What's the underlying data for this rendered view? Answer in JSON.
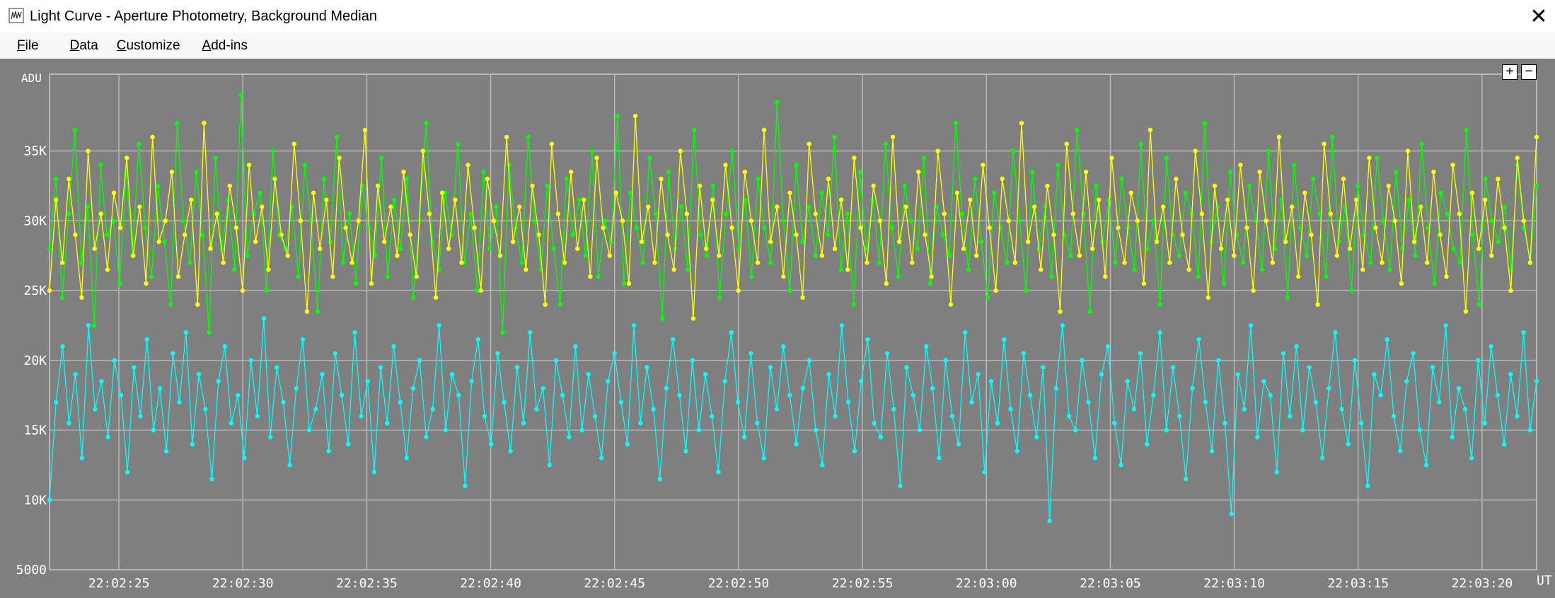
{
  "window": {
    "title": "Light Curve - Aperture Photometry, Background Median",
    "close_glyph": "✕"
  },
  "menu": [
    {
      "u": "F",
      "rest": "ile"
    },
    {
      "u": "D",
      "rest": "ata"
    },
    {
      "u": "C",
      "rest": "ustomize"
    },
    {
      "u": "A",
      "rest": "dd-ins"
    }
  ],
  "zoom": {
    "plus": "+",
    "minus": "−"
  },
  "colors": {
    "plot_bg": "#7f7f7f",
    "grid": "#b8b8b8",
    "axis_text": "#ffffff"
  },
  "chart_data": {
    "type": "line",
    "ylabel": "ADU",
    "xlabel": "UT",
    "ylim": [
      5000,
      40500
    ],
    "xlim_seconds_after_22_02_22_2": [
      0,
      60
    ],
    "y_ticks": [
      {
        "value": 5000,
        "label": "5000"
      },
      {
        "value": 10000,
        "label": "10K"
      },
      {
        "value": 15000,
        "label": "15K"
      },
      {
        "value": 20000,
        "label": "20K"
      },
      {
        "value": 25000,
        "label": "25K"
      },
      {
        "value": 30000,
        "label": "30K"
      },
      {
        "value": 35000,
        "label": "35K"
      }
    ],
    "x_ticks": [
      "22:02:25",
      "22:02:30",
      "22:02:35",
      "22:02:40",
      "22:02:45",
      "22:02:50",
      "22:02:55",
      "22:03:00",
      "22:03:05",
      "22:03:10",
      "22:03:15",
      "22:03:20"
    ],
    "grid": true,
    "markers": true,
    "series": [
      {
        "color": "#00ff00",
        "values": [
          28000,
          33000,
          24500,
          30500,
          36500,
          27000,
          31000,
          22500,
          34000,
          29000,
          30000,
          25500,
          33500,
          27500,
          35500,
          29500,
          26000,
          32500,
          28500,
          24000,
          37000,
          30000,
          27000,
          33500,
          29000,
          22000,
          34500,
          28000,
          31500,
          26500,
          39000,
          27500,
          30500,
          32000,
          25000,
          35000,
          29000,
          28000,
          31000,
          26000,
          34000,
          30000,
          23500,
          33000,
          28500,
          36000,
          27000,
          30500,
          25500,
          32500,
          29500,
          27500,
          34500,
          26000,
          31500,
          28000,
          33000,
          24500,
          30000,
          37000,
          28500,
          26500,
          32000,
          29000,
          35500,
          27000,
          30500,
          25000,
          33500,
          28000,
          31000,
          22000,
          34000,
          29500,
          27000,
          36000,
          30000,
          26500,
          32500,
          28000,
          24000,
          33000,
          29000,
          31500,
          27500,
          35000,
          26000,
          30000,
          28500,
          37500,
          25500,
          32000,
          29500,
          27000,
          34500,
          30500,
          23000,
          33500,
          28000,
          31000,
          26500,
          36500,
          29000,
          27500,
          32500,
          24500,
          30500,
          35000,
          28000,
          31500,
          26000,
          33000,
          29500,
          27000,
          38500,
          30000,
          25000,
          34000,
          28500,
          31000,
          27500,
          32000,
          29000,
          36000,
          26500,
          30500,
          24000,
          33500,
          28000,
          31500,
          27000,
          35500,
          29500,
          26000,
          32500,
          30000,
          28000,
          34500,
          25500,
          31000,
          29000,
          27500,
          37000,
          30500,
          26500,
          33000,
          28500,
          24500,
          32000,
          29500,
          27000,
          35000,
          30000,
          25000,
          33500,
          28000,
          31000,
          26000,
          34000,
          29000,
          27500,
          36500,
          30500,
          23500,
          32500,
          28500,
          31500,
          27000,
          33000,
          29500,
          26500,
          35500,
          28000,
          30000,
          24000,
          34500,
          29000,
          27500,
          32000,
          30500,
          26000,
          37000,
          28500,
          31000,
          25500,
          33500,
          29000,
          27000,
          32500,
          30000,
          26500,
          35000,
          28000,
          31500,
          24500,
          34000,
          29500,
          27500,
          33000,
          30500,
          26000,
          36000,
          28500,
          31000,
          25000,
          32500,
          29000,
          27000,
          34500,
          30000,
          26500,
          33500,
          28000,
          31500,
          27500,
          35500,
          29500,
          25500,
          32000,
          30500,
          28000,
          27000,
          36500,
          29000,
          24000,
          33000,
          30000,
          28500,
          31000,
          26500,
          34000,
          29500,
          27000,
          32500
        ]
      },
      {
        "color": "#ffff00",
        "values": [
          25000,
          31500,
          27000,
          33000,
          29000,
          24500,
          35000,
          28000,
          30500,
          26500,
          32000,
          29500,
          34500,
          27500,
          31000,
          25500,
          36000,
          28500,
          30000,
          33500,
          26000,
          29000,
          31500,
          24000,
          37000,
          28000,
          30500,
          27000,
          32500,
          29500,
          25000,
          34000,
          28500,
          31000,
          26500,
          33000,
          29000,
          27500,
          35500,
          30000,
          23500,
          32000,
          28000,
          31500,
          26000,
          34500,
          29500,
          27000,
          30000,
          36500,
          25500,
          32500,
          28500,
          31000,
          27500,
          33500,
          29000,
          26000,
          35000,
          30500,
          24500,
          32000,
          28000,
          31500,
          27000,
          34000,
          29500,
          25000,
          33000,
          30000,
          27500,
          36000,
          28500,
          31000,
          26500,
          32500,
          29000,
          24000,
          35500,
          30500,
          27000,
          33500,
          28000,
          31500,
          26000,
          34500,
          29500,
          27500,
          32000,
          30000,
          25500,
          37500,
          28500,
          31000,
          27000,
          33000,
          29000,
          26500,
          35000,
          30500,
          23000,
          32500,
          28000,
          31500,
          27500,
          34000,
          29500,
          25000,
          33500,
          30000,
          27000,
          36500,
          28500,
          31000,
          26000,
          32000,
          29000,
          24500,
          35500,
          30500,
          27500,
          33000,
          28000,
          31500,
          26500,
          34500,
          29500,
          27000,
          32500,
          30000,
          25500,
          36000,
          28500,
          31000,
          27000,
          33500,
          29000,
          26000,
          35000,
          30500,
          24000,
          32000,
          28000,
          31500,
          27500,
          34000,
          29500,
          25000,
          33000,
          30000,
          27000,
          37000,
          28500,
          31000,
          26500,
          32500,
          29000,
          23500,
          35500,
          30500,
          27500,
          33500,
          28000,
          31500,
          26000,
          34500,
          29500,
          27000,
          32000,
          30000,
          25500,
          36500,
          28500,
          31000,
          27000,
          33000,
          29000,
          26500,
          35000,
          30500,
          24500,
          32500,
          28000,
          31500,
          27500,
          34000,
          29500,
          25000,
          33500,
          30000,
          27000,
          36000,
          28500,
          31000,
          26000,
          32000,
          29000,
          24000,
          35500,
          30500,
          27500,
          33000,
          28000,
          31500,
          26500,
          34500,
          29500,
          27000,
          32500,
          30000,
          25500,
          35000,
          28500,
          31000,
          27000,
          33500,
          29000,
          26000,
          34000,
          30500,
          23500,
          32000,
          28000,
          31500,
          27500,
          33000,
          29500,
          25000,
          34500,
          30000,
          27000,
          36000
        ]
      },
      {
        "color": "#00ffff",
        "values": [
          10000,
          17000,
          21000,
          15500,
          19000,
          13000,
          22500,
          16500,
          18500,
          14500,
          20000,
          17500,
          12000,
          19500,
          16000,
          21500,
          15000,
          18000,
          13500,
          20500,
          17000,
          22000,
          14000,
          19000,
          16500,
          11500,
          18500,
          21000,
          15500,
          17500,
          13000,
          20000,
          16000,
          23000,
          14500,
          19500,
          17000,
          12500,
          18000,
          21500,
          15000,
          16500,
          19000,
          13500,
          20500,
          17500,
          14000,
          22000,
          16000,
          18500,
          12000,
          19500,
          15500,
          21000,
          17000,
          13000,
          18000,
          20000,
          14500,
          16500,
          22500,
          15000,
          19000,
          17500,
          11000,
          18500,
          21500,
          16000,
          14000,
          20500,
          17000,
          13500,
          19500,
          15500,
          22000,
          16500,
          18000,
          12500,
          20000,
          17500,
          14500,
          21000,
          15000,
          19000,
          16000,
          13000,
          18500,
          20500,
          17000,
          14000,
          22500,
          15500,
          19500,
          16500,
          11500,
          18000,
          21500,
          17500,
          13500,
          20000,
          15000,
          19000,
          16000,
          12000,
          18500,
          22000,
          17000,
          14500,
          20500,
          15500,
          13000,
          19500,
          16500,
          21000,
          17500,
          14000,
          18000,
          20000,
          15000,
          12500,
          19000,
          16000,
          22500,
          17000,
          13500,
          18500,
          21500,
          15500,
          14500,
          20500,
          16500,
          11000,
          19500,
          17500,
          15000,
          21000,
          18000,
          13000,
          20000,
          16000,
          14000,
          22000,
          17000,
          19000,
          12000,
          18500,
          15500,
          21500,
          16500,
          13500,
          20500,
          17500,
          14500,
          19500,
          8500,
          18000,
          22500,
          16000,
          15000,
          20000,
          17000,
          13000,
          19000,
          21000,
          15500,
          12500,
          18500,
          16500,
          20500,
          14000,
          17500,
          22000,
          15000,
          19500,
          16000,
          11500,
          18000,
          21500,
          17000,
          13500,
          20000,
          15500,
          9000,
          19000,
          16500,
          22500,
          14500,
          18500,
          17500,
          12000,
          20500,
          16000,
          21000,
          15000,
          19500,
          17000,
          13000,
          18000,
          22000,
          16500,
          14000,
          20000,
          15500,
          11000,
          19000,
          17500,
          21500,
          16000,
          13500,
          18500,
          20500,
          15000,
          12500,
          19500,
          17000,
          22500,
          14500,
          18000,
          16500,
          13000,
          20000,
          15500,
          21000,
          17500,
          14000,
          19000,
          16000,
          22000,
          15000,
          18500
        ]
      }
    ]
  }
}
